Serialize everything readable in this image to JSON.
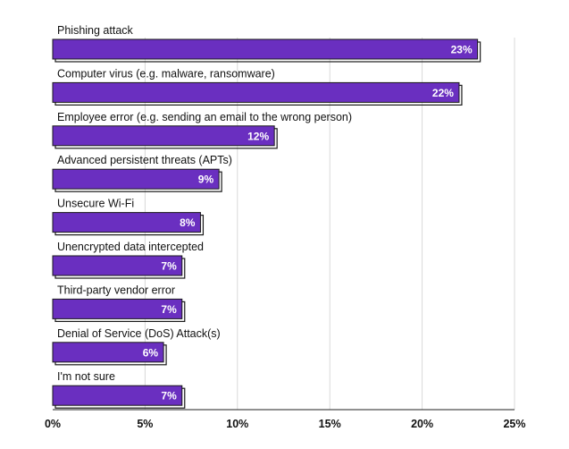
{
  "chart_data": {
    "type": "bar",
    "orientation": "horizontal",
    "categories": [
      "Phishing attack",
      "Computer virus (e.g. malware, ransomware)",
      "Employee error (e.g. sending an email to the wrong person)",
      "Advanced persistent threats (APTs)",
      "Unsecure Wi-Fi",
      "Unencrypted data intercepted",
      "Third-party vendor error",
      "Denial of Service (DoS) Attack(s)",
      "I'm not sure"
    ],
    "values": [
      23,
      22,
      12,
      9,
      8,
      7,
      7,
      6,
      7
    ],
    "data_labels": [
      "23%",
      "22%",
      "12%",
      "9%",
      "8%",
      "7%",
      "7%",
      "6%",
      "7%"
    ],
    "xlim": [
      0,
      25
    ],
    "xticks": [
      0,
      5,
      10,
      15,
      20,
      25
    ],
    "xtick_labels": [
      "0%",
      "5%",
      "10%",
      "15%",
      "20%",
      "25%"
    ],
    "grid": true,
    "legend": "none",
    "colors": {
      "bar": "#6a2fc0",
      "bar_border": "#1a1a1a",
      "grid": "#d9d9d9",
      "axis": "#222222"
    }
  }
}
